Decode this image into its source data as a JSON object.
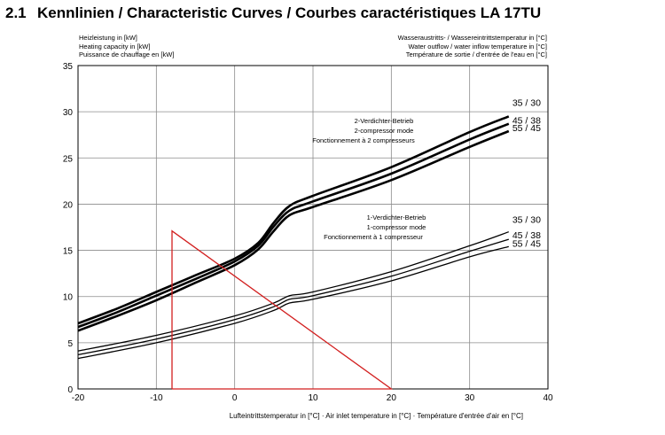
{
  "header": {
    "number": "2.1",
    "title": "Kennlinien / Characteristic Curves / Courbes caractéristiques LA 17TU"
  },
  "y_axis_title": [
    "Heizleistung in [kW]",
    "Heating capacity in [kW]",
    "Puissance de chauffage en [kW]"
  ],
  "series_title": [
    "Wasseraustritts- / Wassereintrittstemperatur in [°C]",
    "Water outflow / water inflow temperature in [°C]",
    "Température de sortie / d'entrée de l'eau en [°C]"
  ],
  "x_axis_title": "Lufteintrittstemperatur in [°C] · Air inlet temperature in [°C] · Température d'entrée d'air en [°C]",
  "modes": {
    "two": [
      "2-Verdichter-Betrieb",
      "2-compressor mode",
      "Fonctionnement à 2 compresseurs"
    ],
    "one": [
      "1-Verdichter-Betrieb",
      "1-compressor mode",
      "Fonctionnement à 1 compresseur"
    ]
  },
  "colors": {
    "curve": "#000000",
    "grid": "#8c8c8c",
    "heat_demand": "#d21f1f"
  },
  "chart_data": {
    "type": "line",
    "xlim": [
      -20,
      40
    ],
    "ylim": [
      0,
      35
    ],
    "xticks": [
      -20,
      -10,
      0,
      10,
      20,
      30,
      40
    ],
    "yticks": [
      0,
      5,
      10,
      15,
      20,
      25,
      30,
      35
    ],
    "grid": true,
    "series": [
      {
        "name": "35 / 30",
        "mode": "2-compressor",
        "x": [
          -20,
          -15,
          -10,
          -5,
          0,
          3,
          5,
          7,
          10,
          20,
          30,
          35
        ],
        "y": [
          7.1,
          8.7,
          10.5,
          12.3,
          14.1,
          15.8,
          18.0,
          19.8,
          20.9,
          24.0,
          27.8,
          29.5
        ]
      },
      {
        "name": "45 / 38",
        "mode": "2-compressor",
        "x": [
          -20,
          -15,
          -10,
          -5,
          0,
          3,
          5,
          7,
          10,
          20,
          30,
          35
        ],
        "y": [
          6.7,
          8.3,
          10.1,
          11.9,
          13.8,
          15.5,
          17.6,
          19.3,
          20.3,
          23.3,
          27.0,
          28.7
        ]
      },
      {
        "name": "55 / 45",
        "mode": "2-compressor",
        "x": [
          -20,
          -15,
          -10,
          -5,
          0,
          3,
          5,
          7,
          10,
          20,
          30,
          35
        ],
        "y": [
          6.3,
          7.9,
          9.6,
          11.5,
          13.4,
          15.1,
          17.1,
          18.8,
          19.7,
          22.6,
          26.2,
          27.9
        ]
      },
      {
        "name": "35 / 30",
        "mode": "1-compressor",
        "x": [
          -20,
          -10,
          0,
          5,
          7,
          10,
          20,
          30,
          35
        ],
        "y": [
          4.1,
          5.8,
          7.9,
          9.3,
          10.1,
          10.5,
          12.7,
          15.5,
          17.0
        ]
      },
      {
        "name": "45 / 38",
        "mode": "1-compressor",
        "x": [
          -20,
          -10,
          0,
          5,
          7,
          10,
          20,
          30,
          35
        ],
        "y": [
          3.7,
          5.4,
          7.5,
          8.9,
          9.7,
          10.1,
          12.2,
          14.9,
          16.2
        ]
      },
      {
        "name": "55 / 45",
        "mode": "1-compressor",
        "x": [
          -20,
          -10,
          0,
          5,
          7,
          10,
          20,
          30,
          35
        ],
        "y": [
          3.3,
          5.0,
          7.1,
          8.5,
          9.3,
          9.7,
          11.7,
          14.3,
          15.4
        ]
      }
    ],
    "heat_demand_line": {
      "x": [
        -8,
        -8,
        20,
        -8
      ],
      "y": [
        0,
        17.1,
        0,
        0
      ]
    }
  }
}
